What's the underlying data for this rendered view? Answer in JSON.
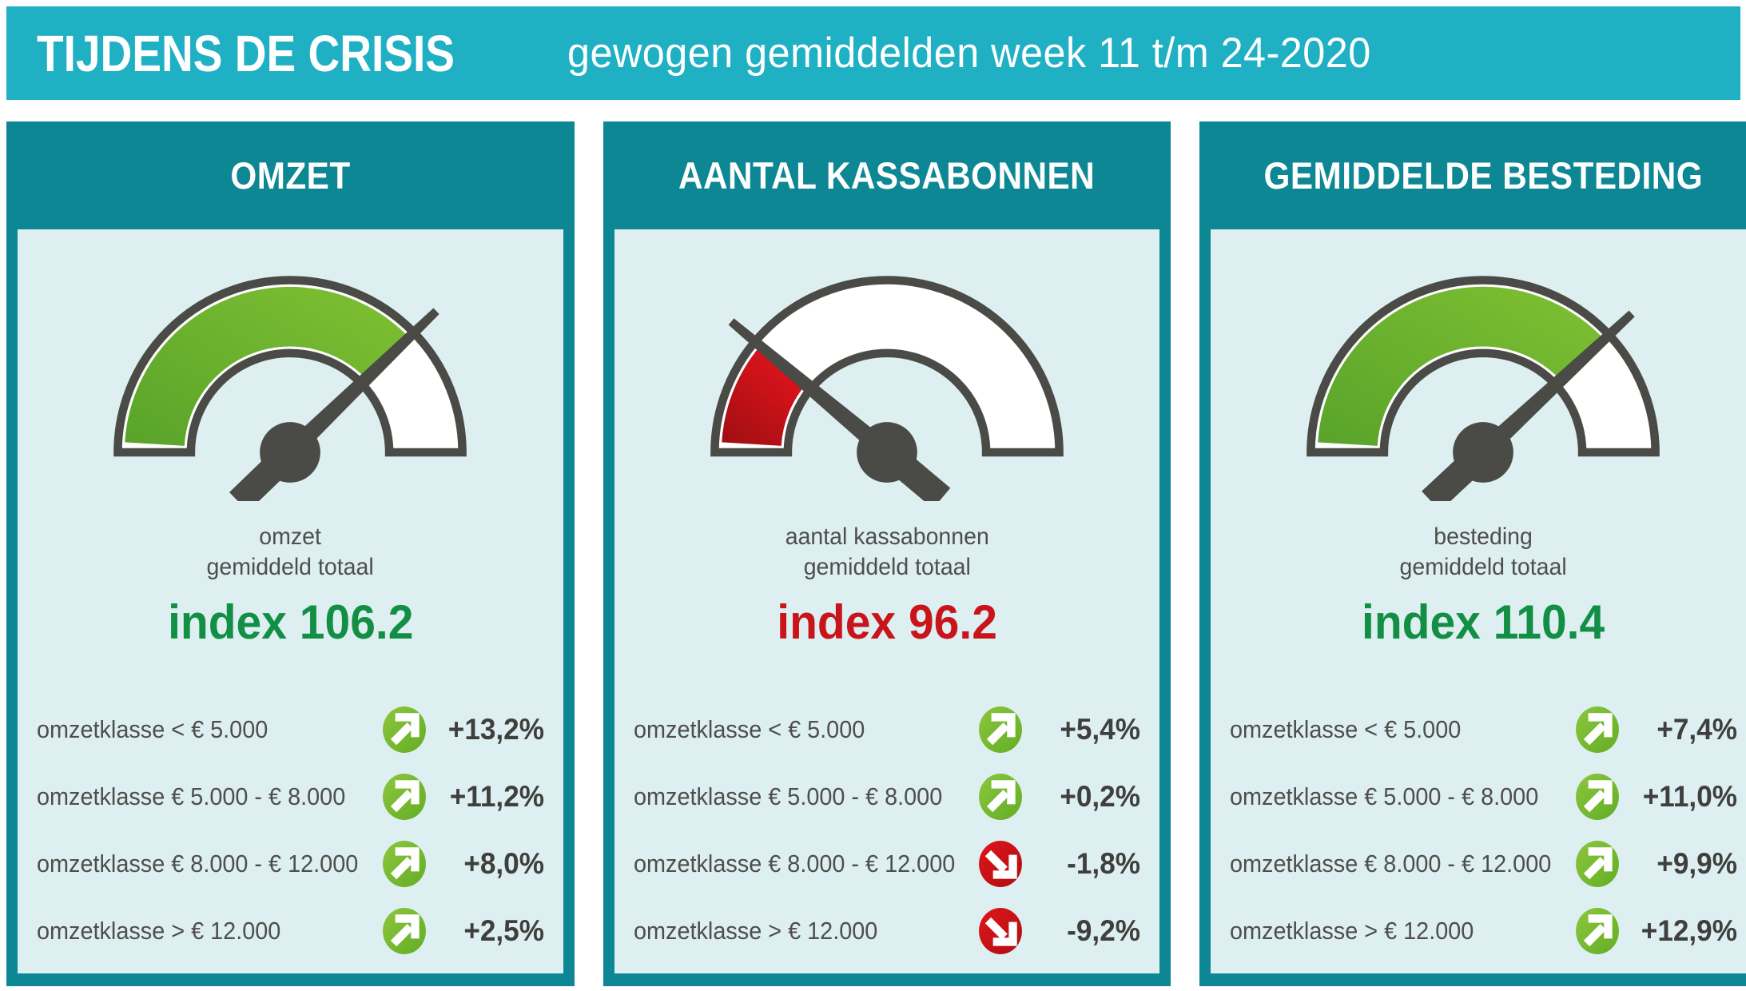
{
  "header": {
    "title": "TIJDENS DE CRISIS",
    "subtitle": "gewogen gemiddelden week 11 t/m 24-2020"
  },
  "colors": {
    "topbar": "#1fb0c3",
    "panel_teal": "#0e8795",
    "panel_body": "#ddeff0",
    "needle_gray": "#4a4a46",
    "positive_green": "#72b52c",
    "negative_red": "#cc1117",
    "index_green": "#128f45",
    "index_red": "#c8141a"
  },
  "panels": [
    {
      "title": "OMZET",
      "caption_line1": "omzet",
      "caption_line2": "gemiddeld totaal",
      "index_label": "index 106.2",
      "index_color": "#128f45",
      "gauge": {
        "color": "green",
        "needle_deg": 44
      },
      "rows": [
        {
          "label": "omzetklasse < € 5.000",
          "trend": "up",
          "value": "+13,2%"
        },
        {
          "label": "omzetklasse € 5.000 - € 8.000",
          "trend": "up",
          "value": "+11,2%"
        },
        {
          "label": "omzetklasse € 8.000 - € 12.000",
          "trend": "up",
          "value": "+8,0%"
        },
        {
          "label": "omzetklasse > € 12.000",
          "trend": "up",
          "value": "+2,5%"
        }
      ]
    },
    {
      "title": "AANTAL KASSABONNEN",
      "caption_line1": "aantal kassabonnen",
      "caption_line2": "gemiddeld totaal",
      "index_label": "index 96.2",
      "index_color": "#c8141a",
      "gauge": {
        "color": "red",
        "needle_deg": 140
      },
      "rows": [
        {
          "label": "omzetklasse < € 5.000",
          "trend": "up",
          "value": "+5,4%"
        },
        {
          "label": "omzetklasse € 5.000 - € 8.000",
          "trend": "up",
          "value": "+0,2%"
        },
        {
          "label": "omzetklasse € 8.000 - € 12.000",
          "trend": "down",
          "value": "-1,8%"
        },
        {
          "label": "omzetklasse > € 12.000",
          "trend": "down",
          "value": "-9,2%"
        }
      ]
    },
    {
      "title": "GEMIDDELDE BESTEDING",
      "caption_line1": "besteding",
      "caption_line2": "gemiddeld totaal",
      "index_label": "index 110.4",
      "index_color": "#128f45",
      "gauge": {
        "color": "green",
        "needle_deg": 43
      },
      "rows": [
        {
          "label": "omzetklasse < € 5.000",
          "trend": "up",
          "value": "+7,4%"
        },
        {
          "label": "omzetklasse € 5.000 - € 8.000",
          "trend": "up",
          "value": "+11,0%"
        },
        {
          "label": "omzetklasse € 8.000 - € 12.000",
          "trend": "up",
          "value": "+9,9%"
        },
        {
          "label": "omzetklasse > € 12.000",
          "trend": "up",
          "value": "+12,9%"
        }
      ]
    }
  ],
  "chart_data": {
    "type": "gauge",
    "title": "TIJDENS DE CRISIS — gewogen gemiddelden week 11 t/m 24-2020",
    "gauges": [
      {
        "name": "omzet gemiddeld totaal",
        "index": 106.2,
        "status": "positive"
      },
      {
        "name": "aantal kassabonnen gemiddeld totaal",
        "index": 96.2,
        "status": "negative"
      },
      {
        "name": "besteding gemiddeld totaal",
        "index": 110.4,
        "status": "positive"
      }
    ],
    "categories": [
      "omzetklasse < € 5.000",
      "omzetklasse € 5.000 - € 8.000",
      "omzetklasse € 8.000 - € 12.000",
      "omzetklasse > € 12.000"
    ],
    "series": [
      {
        "name": "OMZET",
        "values_pct": [
          13.2,
          11.2,
          8.0,
          2.5
        ]
      },
      {
        "name": "AANTAL KASSABONNEN",
        "values_pct": [
          5.4,
          0.2,
          -1.8,
          -9.2
        ]
      },
      {
        "name": "GEMIDDELDE BESTEDING",
        "values_pct": [
          7.4,
          11.0,
          9.9,
          12.9
        ]
      }
    ]
  }
}
